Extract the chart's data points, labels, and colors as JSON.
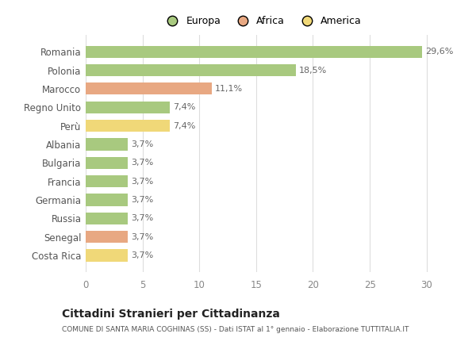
{
  "categories": [
    "Romania",
    "Polonia",
    "Marocco",
    "Regno Unito",
    "Perù",
    "Albania",
    "Bulgaria",
    "Francia",
    "Germania",
    "Russia",
    "Senegal",
    "Costa Rica"
  ],
  "values": [
    29.6,
    18.5,
    11.1,
    7.4,
    7.4,
    3.7,
    3.7,
    3.7,
    3.7,
    3.7,
    3.7,
    3.7
  ],
  "labels": [
    "29,6%",
    "18,5%",
    "11,1%",
    "7,4%",
    "7,4%",
    "3,7%",
    "3,7%",
    "3,7%",
    "3,7%",
    "3,7%",
    "3,7%",
    "3,7%"
  ],
  "colors": [
    "#a8c97f",
    "#a8c97f",
    "#e8a882",
    "#a8c97f",
    "#f0d878",
    "#a8c97f",
    "#a8c97f",
    "#a8c97f",
    "#a8c97f",
    "#a8c97f",
    "#e8a882",
    "#f0d878"
  ],
  "legend": [
    {
      "label": "Europa",
      "color": "#a8c97f"
    },
    {
      "label": "Africa",
      "color": "#e8a882"
    },
    {
      "label": "America",
      "color": "#f0d878"
    }
  ],
  "title": "Cittadini Stranieri per Cittadinanza",
  "subtitle": "COMUNE DI SANTA MARIA COGHINAS (SS) - Dati ISTAT al 1° gennaio - Elaborazione TUTTITALIA.IT",
  "xlim": [
    0,
    31
  ],
  "xticks": [
    0,
    5,
    10,
    15,
    20,
    25,
    30
  ],
  "background_color": "#ffffff",
  "grid_color": "#dddddd",
  "bar_height": 0.65
}
